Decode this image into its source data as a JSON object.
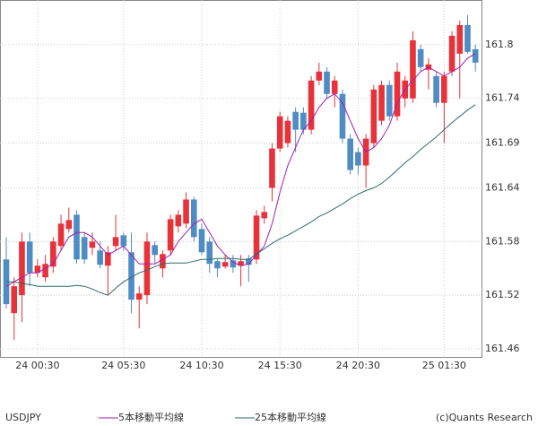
{
  "chart_data": {
    "type": "candlestick",
    "title": "USDJPY",
    "credit": "(c)Quants Research",
    "categories": [
      null,
      null,
      null,
      null,
      "24 00:30",
      null,
      null,
      null,
      null,
      null,
      null,
      null,
      null,
      null,
      null,
      "24 05:30",
      null,
      null,
      null,
      null,
      null,
      null,
      null,
      null,
      null,
      "24 10:30",
      null,
      null,
      null,
      null,
      null,
      null,
      null,
      null,
      null,
      "24 15:30",
      null,
      null,
      null,
      null,
      null,
      null,
      null,
      null,
      null,
      "24 20:30",
      null,
      null,
      null,
      null,
      null,
      null,
      null,
      null,
      null,
      null,
      "25 01:30",
      null,
      null,
      null,
      null
    ],
    "open": [
      161.56,
      161.5,
      161.52,
      161.58,
      161.545,
      161.54,
      161.552,
      161.575,
      161.594,
      161.61,
      161.585,
      161.573,
      161.57,
      161.553,
      161.575,
      161.587,
      161.568,
      161.515,
      161.52,
      161.576,
      161.55,
      161.57,
      161.597,
      161.6,
      161.627,
      161.594,
      161.58,
      161.558,
      161.552,
      161.559,
      161.553,
      161.561,
      161.56,
      161.606,
      161.64,
      161.684,
      161.69,
      161.725,
      161.724,
      161.705,
      161.76,
      161.77,
      161.745,
      161.745,
      161.695,
      161.68,
      161.665,
      161.69,
      161.715,
      161.755,
      161.72,
      161.74,
      161.74,
      161.795,
      161.772,
      161.765,
      161.735,
      161.77,
      161.79,
      161.822,
      161.795
    ],
    "high": [
      161.585,
      161.54,
      161.59,
      161.59,
      161.56,
      161.565,
      161.585,
      161.61,
      161.618,
      161.615,
      161.59,
      161.59,
      161.58,
      161.575,
      161.61,
      161.59,
      161.59,
      161.53,
      161.59,
      161.58,
      161.57,
      161.61,
      161.615,
      161.635,
      161.63,
      161.6,
      161.585,
      161.56,
      161.565,
      161.565,
      161.565,
      161.565,
      161.615,
      161.62,
      161.69,
      161.725,
      161.72,
      161.73,
      161.73,
      161.765,
      161.78,
      161.775,
      161.765,
      161.75,
      161.7,
      161.685,
      161.7,
      161.755,
      161.76,
      161.76,
      161.78,
      161.765,
      161.815,
      161.8,
      161.785,
      161.77,
      161.77,
      161.815,
      161.827,
      161.833,
      161.8
    ],
    "low": [
      161.505,
      161.47,
      161.49,
      161.53,
      161.54,
      161.535,
      161.545,
      161.57,
      161.59,
      161.555,
      161.555,
      161.565,
      161.55,
      161.52,
      161.57,
      161.57,
      161.5,
      161.483,
      161.51,
      161.555,
      161.54,
      161.565,
      161.59,
      161.595,
      161.58,
      161.565,
      161.545,
      161.54,
      161.55,
      161.545,
      161.53,
      161.535,
      161.555,
      161.6,
      161.625,
      161.68,
      161.685,
      161.68,
      161.7,
      161.7,
      161.755,
      161.74,
      161.73,
      161.69,
      161.655,
      161.655,
      161.64,
      161.685,
      161.71,
      161.715,
      161.715,
      161.73,
      161.735,
      161.77,
      161.75,
      161.73,
      161.69,
      161.765,
      161.74,
      161.79,
      161.77
    ],
    "close": [
      161.51,
      161.53,
      161.58,
      161.545,
      161.553,
      161.555,
      161.58,
      161.6,
      161.604,
      161.56,
      161.56,
      161.58,
      161.554,
      161.568,
      161.585,
      161.575,
      161.515,
      161.522,
      161.58,
      161.565,
      161.566,
      161.605,
      161.61,
      161.627,
      161.585,
      161.568,
      161.555,
      161.55,
      161.557,
      161.551,
      161.558,
      161.554,
      161.609,
      161.613,
      161.684,
      161.72,
      161.715,
      161.705,
      161.705,
      161.76,
      161.77,
      161.745,
      161.76,
      161.695,
      161.66,
      161.665,
      161.695,
      161.75,
      161.755,
      161.72,
      161.77,
      161.76,
      161.805,
      161.775,
      161.778,
      161.735,
      161.765,
      161.81,
      161.822,
      161.792,
      161.78
    ],
    "up_color": "#e8323a",
    "down_color": "#4f8cc4",
    "series": [
      {
        "name": "5本移動平均線",
        "color": "#a020b0",
        "values": [
          161.53,
          161.535,
          161.54,
          161.545,
          161.545,
          161.55,
          161.555,
          161.57,
          161.585,
          161.59,
          161.59,
          161.585,
          161.575,
          161.565,
          161.57,
          161.575,
          161.565,
          161.555,
          161.555,
          161.555,
          161.56,
          161.565,
          161.58,
          161.59,
          161.6,
          161.605,
          161.59,
          161.575,
          161.565,
          161.557,
          161.553,
          161.555,
          161.565,
          161.575,
          161.6,
          161.635,
          161.665,
          161.685,
          161.705,
          161.715,
          161.73,
          161.74,
          161.745,
          161.735,
          161.715,
          161.695,
          161.68,
          161.685,
          161.695,
          161.71,
          161.735,
          161.75,
          161.76,
          161.77,
          161.775,
          161.77,
          161.765,
          161.77,
          161.775,
          161.785,
          161.79
        ]
      },
      {
        "name": "25本移動平均線",
        "color": "#2f6b6b",
        "values": [
          161.535,
          161.535,
          161.533,
          161.532,
          161.53,
          161.53,
          161.53,
          161.53,
          161.53,
          161.531,
          161.53,
          161.527,
          161.523,
          161.52,
          161.528,
          161.535,
          161.54,
          161.545,
          161.548,
          161.552,
          161.555,
          161.556,
          161.556,
          161.556,
          161.558,
          161.56,
          161.56,
          161.561,
          161.561,
          161.561,
          161.56,
          161.56,
          161.566,
          161.572,
          161.578,
          161.583,
          161.587,
          161.592,
          161.597,
          161.602,
          161.608,
          161.612,
          161.617,
          161.622,
          161.628,
          161.633,
          161.637,
          161.64,
          161.645,
          161.652,
          161.66,
          161.668,
          161.675,
          161.683,
          161.69,
          161.697,
          161.705,
          161.713,
          161.72,
          161.727,
          161.733
        ]
      }
    ],
    "ylim": [
      161.451,
      161.85
    ],
    "yticks": [
      161.46,
      161.52,
      161.58,
      161.64,
      161.69,
      161.74,
      161.8
    ],
    "grid": true
  }
}
